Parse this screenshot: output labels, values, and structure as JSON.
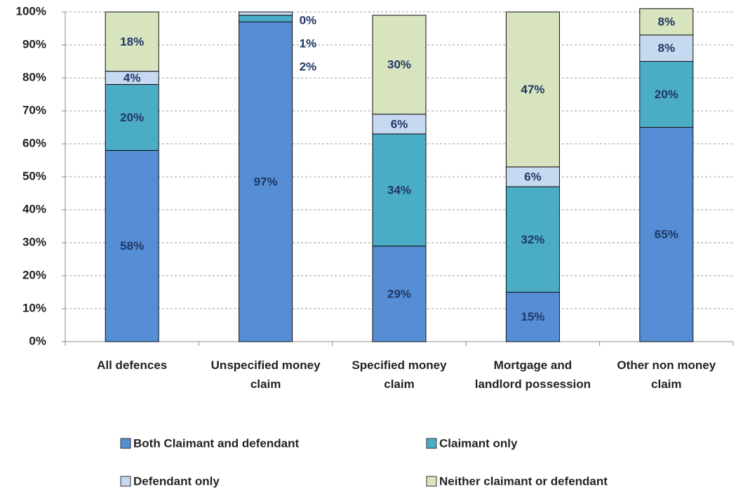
{
  "chart_data": {
    "type": "stacked_bar",
    "categories": [
      "All defences",
      "Unspecified money claim",
      "Specified money claim",
      "Mortgage and landlord possession",
      "Other non money claim"
    ],
    "series": [
      {
        "name": "Both Claimant and defendant",
        "color": "#558ed5",
        "values": [
          58,
          97,
          29,
          15,
          65
        ],
        "value_labels": [
          "58%",
          "97%",
          "29%",
          "15%",
          "65%"
        ]
      },
      {
        "name": "Claimant only",
        "color": "#4bacc6",
        "values": [
          20,
          2,
          34,
          32,
          20
        ],
        "value_labels": [
          "20%",
          "2%",
          "34%",
          "32%",
          "20%"
        ]
      },
      {
        "name": "Defendant only",
        "color": "#c6d9f1",
        "values": [
          4,
          1,
          6,
          6,
          8
        ],
        "value_labels": [
          "4%",
          "1%",
          "6%",
          "6%",
          "8%"
        ]
      },
      {
        "name": "Neither claimant or defendant",
        "color": "#d7e4bd",
        "values": [
          18,
          0,
          30,
          47,
          8
        ],
        "value_labels": [
          "18%",
          "0%",
          "30%",
          "47%",
          "8%"
        ]
      }
    ],
    "ylim": [
      0,
      100
    ],
    "yticks": [
      {
        "value": 0,
        "label": "0%"
      },
      {
        "value": 10,
        "label": "10%"
      },
      {
        "value": 20,
        "label": "20%"
      },
      {
        "value": 30,
        "label": "30%"
      },
      {
        "value": 40,
        "label": "40%"
      },
      {
        "value": 50,
        "label": "50%"
      },
      {
        "value": 60,
        "label": "60%"
      },
      {
        "value": 70,
        "label": "70%"
      },
      {
        "value": 80,
        "label": "80%"
      },
      {
        "value": 90,
        "label": "90%"
      },
      {
        "value": 100,
        "label": "100%"
      }
    ],
    "grid": true,
    "legend": "bottom"
  }
}
